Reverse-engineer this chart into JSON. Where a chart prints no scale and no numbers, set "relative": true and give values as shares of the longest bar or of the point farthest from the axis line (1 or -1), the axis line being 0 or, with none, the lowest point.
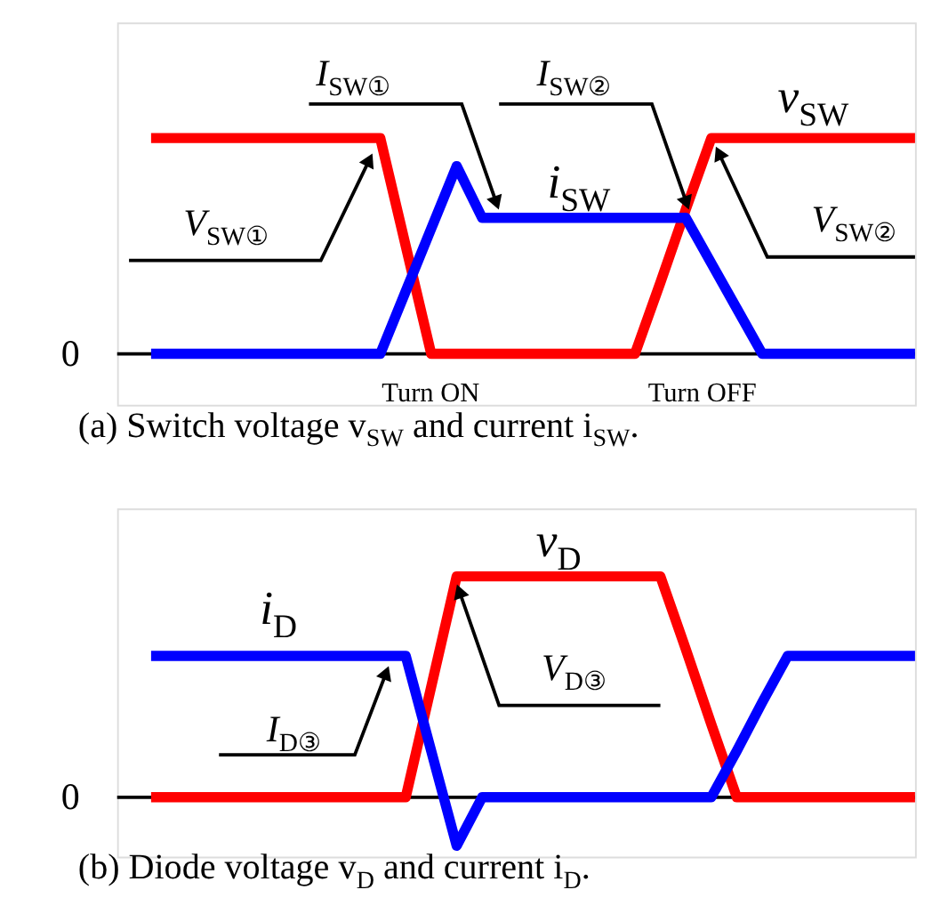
{
  "chart_data": [
    {
      "type": "line",
      "relative": true,
      "title": "(a) Switch voltage v$_{SW}$ and current i$_{SW}$.",
      "line_style": "solid",
      "legend": false,
      "categories": [
        null,
        null,
        null,
        null,
        null,
        null,
        null,
        null,
        null,
        null,
        null,
        null,
        null,
        null,
        null,
        null,
        null,
        null,
        null,
        null,
        null,
        null,
        null,
        null,
        null,
        null,
        null,
        null,
        null,
        null,
        null
      ],
      "series": [
        {
          "color": "#ff0000",
          "values": [
            1,
            1,
            1,
            1,
            1,
            1,
            1,
            1,
            1,
            1,
            0.5,
            0,
            0,
            0,
            0,
            0,
            0,
            0,
            0,
            0,
            0.33,
            0.67,
            1,
            1,
            1,
            1,
            1,
            1,
            1,
            1,
            1
          ]
        },
        {
          "color": "#0000ff",
          "values": [
            0,
            0,
            0,
            0,
            0,
            0,
            0,
            0,
            0,
            0,
            0.29,
            0.58,
            0.87,
            0.63,
            0.63,
            0.63,
            0.63,
            0.63,
            0.63,
            0.63,
            0.63,
            0.63,
            0.42,
            0.21,
            0,
            0,
            0,
            0,
            0,
            0,
            0
          ]
        }
      ],
      "annotations": [
        "I$_{SW①}$",
        "V$_{SW①}$",
        "I$_{SW②}$",
        "V$_{SW②}$",
        "v$_{SW}$",
        "i$_{SW}$",
        "Turn ON",
        "Turn OFF",
        "0"
      ]
    },
    {
      "type": "line",
      "relative": true,
      "title": "(b) Diode voltage v$_{D}$ and current i$_{D}$.",
      "line_style": "solid",
      "legend": false,
      "categories": [
        null,
        null,
        null,
        null,
        null,
        null,
        null,
        null,
        null,
        null,
        null,
        null,
        null,
        null,
        null,
        null,
        null,
        null,
        null,
        null,
        null,
        null,
        null,
        null,
        null,
        null,
        null,
        null,
        null,
        null,
        null
      ],
      "series": [
        {
          "color": "#ff0000",
          "values": [
            0,
            0,
            0,
            0,
            0,
            0,
            0,
            0,
            0,
            0,
            0,
            0.5,
            1,
            1,
            1,
            1,
            1,
            1,
            1,
            1,
            1,
            0.67,
            0.33,
            0,
            0,
            0,
            0,
            0,
            0,
            0,
            0
          ]
        },
        {
          "color": "#0000ff",
          "values": [
            0.64,
            0.64,
            0.64,
            0.64,
            0.64,
            0.64,
            0.64,
            0.64,
            0.64,
            0.64,
            0.64,
            0.21,
            -0.22,
            0,
            0,
            0,
            0,
            0,
            0,
            0,
            0,
            0,
            0,
            0.21,
            0.43,
            0.64,
            0.64,
            0.64,
            0.64,
            0.64,
            0.64
          ]
        }
      ],
      "annotations": [
        "I$_{D③}$",
        "V$_{D③}$",
        "v$_{D}$",
        "i$_{D}$",
        "0"
      ]
    }
  ]
}
